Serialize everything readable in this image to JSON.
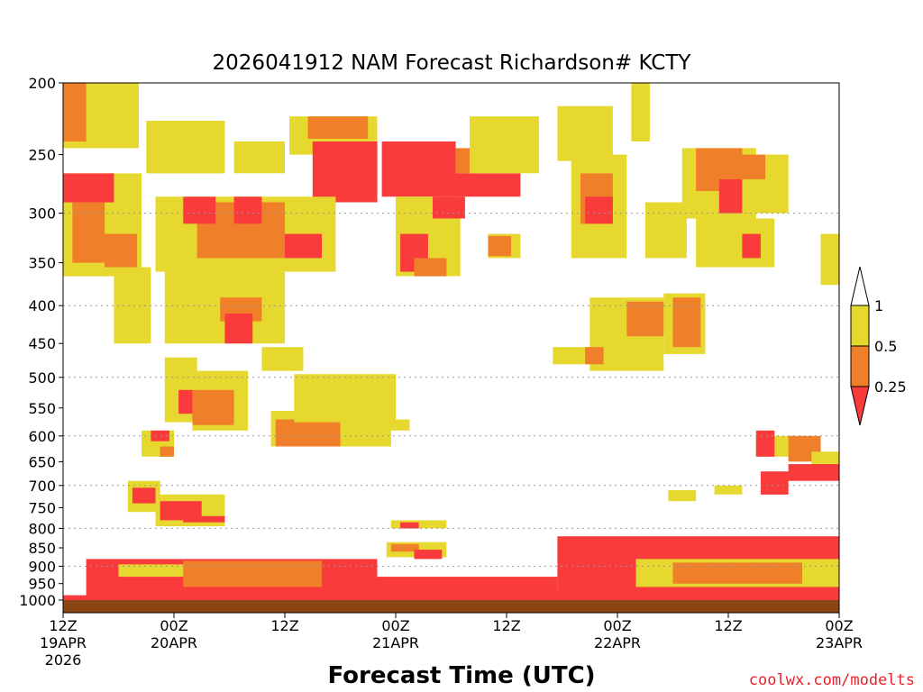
{
  "chart_data": {
    "type": "heatmap",
    "title": "2026041912 NAM Forecast Richardson# KCTY",
    "xlabel": "Forecast Time (UTC)",
    "credit": "coolwx.com/modelts",
    "x_range_hours": [
      0,
      84
    ],
    "y_range_mb": [
      1000,
      200
    ],
    "y_ticks": [
      {
        "value": 200,
        "label": "200"
      },
      {
        "value": 250,
        "label": "250"
      },
      {
        "value": 300,
        "label": "300"
      },
      {
        "value": 350,
        "label": "350"
      },
      {
        "value": 400,
        "label": "400"
      },
      {
        "value": 450,
        "label": "450"
      },
      {
        "value": 500,
        "label": "500"
      },
      {
        "value": 550,
        "label": "550"
      },
      {
        "value": 600,
        "label": "600"
      },
      {
        "value": 650,
        "label": "650"
      },
      {
        "value": 700,
        "label": "700"
      },
      {
        "value": 750,
        "label": "750"
      },
      {
        "value": 800,
        "label": "800"
      },
      {
        "value": 850,
        "label": "850"
      },
      {
        "value": 900,
        "label": "900"
      },
      {
        "value": 950,
        "label": "950"
      },
      {
        "value": 1000,
        "label": "1000"
      }
    ],
    "gridlines_mb": [
      300,
      400,
      500,
      600,
      700,
      800,
      900
    ],
    "x_ticks": [
      {
        "hour": 0,
        "lines": [
          "12Z",
          "19APR",
          "2026"
        ]
      },
      {
        "hour": 12,
        "lines": [
          "00Z",
          "20APR"
        ]
      },
      {
        "hour": 24,
        "lines": [
          "12Z"
        ]
      },
      {
        "hour": 36,
        "lines": [
          "00Z",
          "21APR"
        ]
      },
      {
        "hour": 48,
        "lines": [
          "12Z"
        ]
      },
      {
        "hour": 60,
        "lines": [
          "00Z",
          "22APR"
        ]
      },
      {
        "hour": 72,
        "lines": [
          "12Z"
        ]
      },
      {
        "hour": 84,
        "lines": [
          "00Z",
          "23APR"
        ]
      }
    ],
    "legend": {
      "position": "right",
      "bins": [
        {
          "range": "0.5 - 1",
          "color": "#e6d82e"
        },
        {
          "range": "0.25 - 0.5",
          "color": "#ef8029"
        },
        {
          "range": "< 0.25",
          "color": "#fa3b3b"
        }
      ],
      "labels": [
        "1",
        "0.5",
        "0.25"
      ]
    },
    "colors": {
      "yellow": "#e6d82e",
      "orange": "#ef8029",
      "red": "#fa3b3b",
      "ground": "#8b4513"
    },
    "regions": [
      {
        "cls": "Y",
        "h0": 0.0,
        "h1": 8.2,
        "p0": 200,
        "p1": 245
      },
      {
        "cls": "O",
        "h0": 0.0,
        "h1": 2.5,
        "p0": 200,
        "p1": 240
      },
      {
        "cls": "Y",
        "h0": 9.0,
        "h1": 17.5,
        "p0": 225,
        "p1": 265
      },
      {
        "cls": "Y",
        "h0": 18.5,
        "h1": 24.0,
        "p0": 240,
        "p1": 265
      },
      {
        "cls": "Y",
        "h0": 24.5,
        "h1": 34.0,
        "p0": 222,
        "p1": 250
      },
      {
        "cls": "O",
        "h0": 26.5,
        "h1": 33.0,
        "p0": 222,
        "p1": 238
      },
      {
        "cls": "R",
        "h0": 27.0,
        "h1": 34.0,
        "p0": 240,
        "p1": 290
      },
      {
        "cls": "R",
        "h0": 34.5,
        "h1": 42.5,
        "p0": 240,
        "p1": 285
      },
      {
        "cls": "R",
        "h0": 40.5,
        "h1": 49.5,
        "p0": 265,
        "p1": 285
      },
      {
        "cls": "O",
        "h0": 42.5,
        "h1": 44.0,
        "p0": 245,
        "p1": 265
      },
      {
        "cls": "Y",
        "h0": 44.0,
        "h1": 51.5,
        "p0": 222,
        "p1": 265
      },
      {
        "cls": "Y",
        "h0": 0.0,
        "h1": 8.5,
        "p0": 265,
        "p1": 365
      },
      {
        "cls": "R",
        "h0": 0.0,
        "h1": 5.5,
        "p0": 265,
        "p1": 290
      },
      {
        "cls": "O",
        "h0": 1.0,
        "h1": 4.5,
        "p0": 290,
        "p1": 350
      },
      {
        "cls": "O",
        "h0": 4.5,
        "h1": 8.0,
        "p0": 320,
        "p1": 355
      },
      {
        "cls": "Y",
        "h0": 5.5,
        "h1": 9.5,
        "p0": 355,
        "p1": 450
      },
      {
        "cls": "Y",
        "h0": 10.0,
        "h1": 29.5,
        "p0": 285,
        "p1": 360
      },
      {
        "cls": "O",
        "h0": 14.5,
        "h1": 24.0,
        "p0": 290,
        "p1": 345
      },
      {
        "cls": "R",
        "h0": 13.0,
        "h1": 16.5,
        "p0": 285,
        "p1": 310
      },
      {
        "cls": "R",
        "h0": 18.5,
        "h1": 21.5,
        "p0": 285,
        "p1": 310
      },
      {
        "cls": "R",
        "h0": 24.0,
        "h1": 28.0,
        "p0": 320,
        "p1": 345
      },
      {
        "cls": "Y",
        "h0": 11.0,
        "h1": 24.0,
        "p0": 360,
        "p1": 450
      },
      {
        "cls": "O",
        "h0": 17.0,
        "h1": 21.5,
        "p0": 390,
        "p1": 420
      },
      {
        "cls": "R",
        "h0": 17.5,
        "h1": 20.5,
        "p0": 410,
        "p1": 450
      },
      {
        "cls": "Y",
        "h0": 21.5,
        "h1": 26.0,
        "p0": 455,
        "p1": 490
      },
      {
        "cls": "Y",
        "h0": 36.0,
        "h1": 43.0,
        "p0": 285,
        "p1": 365
      },
      {
        "cls": "R",
        "h0": 36.5,
        "h1": 39.5,
        "p0": 320,
        "p1": 360
      },
      {
        "cls": "O",
        "h0": 38.0,
        "h1": 41.5,
        "p0": 345,
        "p1": 365
      },
      {
        "cls": "R",
        "h0": 40.0,
        "h1": 43.5,
        "p0": 285,
        "p1": 305
      },
      {
        "cls": "Y",
        "h0": 46.0,
        "h1": 49.5,
        "p0": 320,
        "p1": 345
      },
      {
        "cls": "O",
        "h0": 46.0,
        "h1": 48.5,
        "p0": 322,
        "p1": 343
      },
      {
        "cls": "Y",
        "h0": 53.5,
        "h1": 59.5,
        "p0": 215,
        "p1": 255
      },
      {
        "cls": "Y",
        "h0": 55.0,
        "h1": 61.0,
        "p0": 250,
        "p1": 345
      },
      {
        "cls": "O",
        "h0": 56.0,
        "h1": 59.5,
        "p0": 265,
        "p1": 310
      },
      {
        "cls": "R",
        "h0": 56.5,
        "h1": 59.5,
        "p0": 285,
        "p1": 310
      },
      {
        "cls": "Y",
        "h0": 61.5,
        "h1": 63.5,
        "p0": 200,
        "p1": 240
      },
      {
        "cls": "Y",
        "h0": 63.0,
        "h1": 67.5,
        "p0": 290,
        "p1": 345
      },
      {
        "cls": "Y",
        "h0": 57.0,
        "h1": 65.0,
        "p0": 390,
        "p1": 490
      },
      {
        "cls": "O",
        "h0": 61.0,
        "h1": 65.0,
        "p0": 395,
        "p1": 440
      },
      {
        "cls": "Y",
        "h0": 65.0,
        "h1": 69.5,
        "p0": 385,
        "p1": 465
      },
      {
        "cls": "O",
        "h0": 66.0,
        "h1": 69.0,
        "p0": 390,
        "p1": 455
      },
      {
        "cls": "Y",
        "h0": 53.0,
        "h1": 61.5,
        "p0": 455,
        "p1": 480
      },
      {
        "cls": "O",
        "h0": 56.5,
        "h1": 58.5,
        "p0": 455,
        "p1": 480
      },
      {
        "cls": "Y",
        "h0": 67.0,
        "h1": 75.0,
        "p0": 245,
        "p1": 305
      },
      {
        "cls": "O",
        "h0": 68.5,
        "h1": 73.5,
        "p0": 245,
        "p1": 280
      },
      {
        "cls": "R",
        "h0": 71.0,
        "h1": 74.5,
        "p0": 270,
        "p1": 300
      },
      {
        "cls": "Y",
        "h0": 73.5,
        "h1": 78.5,
        "p0": 250,
        "p1": 300
      },
      {
        "cls": "O",
        "h0": 73.0,
        "h1": 76.0,
        "p0": 250,
        "p1": 270
      },
      {
        "cls": "Y",
        "h0": 68.5,
        "h1": 77.0,
        "p0": 305,
        "p1": 355
      },
      {
        "cls": "R",
        "h0": 73.5,
        "h1": 75.5,
        "p0": 320,
        "p1": 345
      },
      {
        "cls": "Y",
        "h0": 82.0,
        "h1": 84.0,
        "p0": 320,
        "p1": 375
      },
      {
        "cls": "Y",
        "h0": 11.0,
        "h1": 14.5,
        "p0": 470,
        "p1": 575
      },
      {
        "cls": "R",
        "h0": 12.5,
        "h1": 14.5,
        "p0": 520,
        "p1": 560
      },
      {
        "cls": "Y",
        "h0": 14.0,
        "h1": 20.0,
        "p0": 490,
        "p1": 590
      },
      {
        "cls": "O",
        "h0": 14.0,
        "h1": 18.5,
        "p0": 520,
        "p1": 580
      },
      {
        "cls": "Y",
        "h0": 22.5,
        "h1": 35.5,
        "p0": 555,
        "p1": 620
      },
      {
        "cls": "O",
        "h0": 23.0,
        "h1": 30.0,
        "p0": 570,
        "p1": 620
      },
      {
        "cls": "Y",
        "h0": 25.0,
        "h1": 36.0,
        "p0": 495,
        "p1": 575
      },
      {
        "cls": "Y",
        "h0": 30.0,
        "h1": 37.5,
        "p0": 570,
        "p1": 590
      },
      {
        "cls": "Y",
        "h0": 8.5,
        "h1": 12.0,
        "p0": 590,
        "p1": 640
      },
      {
        "cls": "R",
        "h0": 9.5,
        "h1": 11.5,
        "p0": 590,
        "p1": 610
      },
      {
        "cls": "O",
        "h0": 10.5,
        "h1": 12.0,
        "p0": 620,
        "p1": 640
      },
      {
        "cls": "Y",
        "h0": 75.0,
        "h1": 80.0,
        "p0": 600,
        "p1": 640
      },
      {
        "cls": "R",
        "h0": 75.0,
        "h1": 77.0,
        "p0": 590,
        "p1": 640
      },
      {
        "cls": "O",
        "h0": 78.5,
        "h1": 82.0,
        "p0": 600,
        "p1": 650
      },
      {
        "cls": "Y",
        "h0": 81.0,
        "h1": 84.0,
        "p0": 630,
        "p1": 660
      },
      {
        "cls": "R",
        "h0": 75.5,
        "h1": 78.5,
        "p0": 670,
        "p1": 720
      },
      {
        "cls": "R",
        "h0": 78.5,
        "h1": 84.0,
        "p0": 655,
        "p1": 690
      },
      {
        "cls": "Y",
        "h0": 7.0,
        "h1": 10.5,
        "p0": 690,
        "p1": 760
      },
      {
        "cls": "R",
        "h0": 7.5,
        "h1": 10.0,
        "p0": 705,
        "p1": 740
      },
      {
        "cls": "Y",
        "h0": 10.0,
        "h1": 17.5,
        "p0": 720,
        "p1": 795
      },
      {
        "cls": "R",
        "h0": 10.5,
        "h1": 15.0,
        "p0": 735,
        "p1": 780
      },
      {
        "cls": "R",
        "h0": 13.0,
        "h1": 17.5,
        "p0": 770,
        "p1": 785
      },
      {
        "cls": "Y",
        "h0": 70.5,
        "h1": 73.5,
        "p0": 700,
        "p1": 720
      },
      {
        "cls": "Y",
        "h0": 65.5,
        "h1": 68.5,
        "p0": 710,
        "p1": 735
      },
      {
        "cls": "Y",
        "h0": 35.5,
        "h1": 41.5,
        "p0": 780,
        "p1": 800
      },
      {
        "cls": "R",
        "h0": 36.5,
        "h1": 38.5,
        "p0": 785,
        "p1": 800
      },
      {
        "cls": "Y",
        "h0": 35.0,
        "h1": 41.5,
        "p0": 835,
        "p1": 875
      },
      {
        "cls": "O",
        "h0": 35.5,
        "h1": 38.5,
        "p0": 840,
        "p1": 860
      },
      {
        "cls": "R",
        "h0": 38.0,
        "h1": 41.0,
        "p0": 855,
        "p1": 880
      },
      {
        "cls": "R",
        "h0": 53.5,
        "h1": 84.0,
        "p0": 820,
        "p1": 1000
      },
      {
        "cls": "Y",
        "h0": 62.0,
        "h1": 84.0,
        "p0": 880,
        "p1": 960
      },
      {
        "cls": "O",
        "h0": 66.0,
        "h1": 80.0,
        "p0": 890,
        "p1": 950
      },
      {
        "cls": "R",
        "h0": 2.5,
        "h1": 34.0,
        "p0": 880,
        "p1": 1000
      },
      {
        "cls": "Y",
        "h0": 6.0,
        "h1": 22.0,
        "p0": 895,
        "p1": 930
      },
      {
        "cls": "O",
        "h0": 13.0,
        "h1": 28.0,
        "p0": 885,
        "p1": 960
      },
      {
        "cls": "R",
        "h0": 34.0,
        "h1": 53.5,
        "p0": 930,
        "p1": 1000
      },
      {
        "cls": "R",
        "h0": 0.0,
        "h1": 84.0,
        "p0": 985,
        "p1": 1000
      }
    ]
  }
}
